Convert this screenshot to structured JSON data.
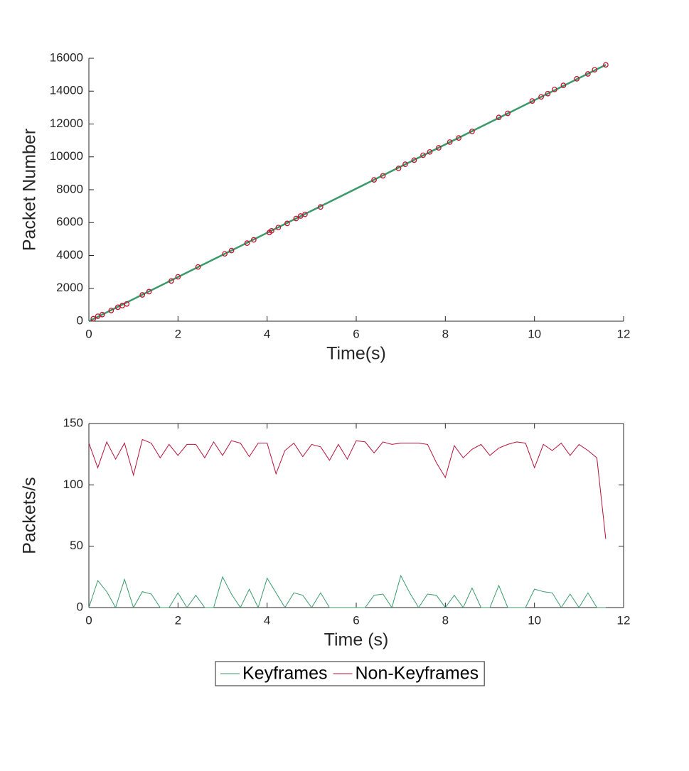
{
  "chart_data": [
    {
      "type": "line",
      "xlabel": "Time(s)",
      "ylabel": "Packet Number",
      "xlim": [
        0,
        12
      ],
      "xticks": [
        0,
        2,
        4,
        6,
        8,
        10,
        12
      ],
      "ylim": [
        0,
        16000
      ],
      "yticks": [
        0,
        2000,
        4000,
        6000,
        8000,
        10000,
        12000,
        14000,
        16000
      ],
      "box": false,
      "series": [
        {
          "color": "#3a9a6a",
          "marker": "none",
          "x": [
            0,
            11.6
          ],
          "values": [
            0,
            15600
          ]
        },
        {
          "color": "#c0142f",
          "marker": "circle",
          "line": false,
          "x": [
            0.1,
            0.2,
            0.3,
            0.5,
            0.65,
            0.75,
            0.85,
            1.2,
            1.35,
            1.85,
            2,
            2.45,
            3.05,
            3.2,
            3.55,
            3.7,
            4.05,
            4.1,
            4.25,
            4.45,
            4.65,
            4.75,
            4.85,
            5.2,
            6.4,
            6.6,
            6.95,
            7.1,
            7.3,
            7.5,
            7.65,
            7.85,
            8.1,
            8.3,
            8.6,
            9.2,
            9.4,
            9.95,
            10.15,
            10.3,
            10.45,
            10.65,
            10.95,
            11.2,
            11.35,
            11.6
          ],
          "values": [
            150,
            300,
            400,
            650,
            850,
            950,
            1050,
            1600,
            1800,
            2450,
            2700,
            3300,
            4100,
            4300,
            4750,
            4950,
            5400,
            5500,
            5700,
            5950,
            6250,
            6400,
            6500,
            6950,
            8600,
            8850,
            9300,
            9550,
            9800,
            10100,
            10300,
            10550,
            10900,
            11150,
            11550,
            12400,
            12650,
            13400,
            13650,
            13850,
            14100,
            14350,
            14750,
            15050,
            15300,
            15600
          ]
        }
      ]
    },
    {
      "type": "line",
      "xlabel": "Time (s)",
      "ylabel": "Packets/s",
      "xlim": [
        0,
        12
      ],
      "xticks": [
        0,
        2,
        4,
        6,
        8,
        10,
        12
      ],
      "ylim": [
        0,
        150
      ],
      "yticks": [
        0,
        50,
        100,
        150
      ],
      "box": true,
      "legend": "bottom",
      "x": [
        0,
        0.2,
        0.4,
        0.6,
        0.8,
        1,
        1.2,
        1.4,
        1.6,
        1.8,
        2,
        2.2,
        2.4,
        2.6,
        2.8,
        3,
        3.2,
        3.4,
        3.6,
        3.8,
        4,
        4.2,
        4.4,
        4.6,
        4.8,
        5,
        5.2,
        5.4,
        5.6,
        5.8,
        6,
        6.2,
        6.4,
        6.6,
        6.8,
        7,
        7.2,
        7.4,
        7.6,
        7.8,
        8,
        8.2,
        8.4,
        8.6,
        8.8,
        9,
        9.2,
        9.4,
        9.6,
        9.8,
        10,
        10.2,
        10.4,
        10.6,
        10.8,
        11,
        11.2,
        11.4,
        11.6
      ],
      "series": [
        {
          "name": "Keyframes",
          "color": "#3a9a6a",
          "values": [
            0,
            22,
            13,
            0,
            23,
            0,
            13,
            11,
            0,
            0,
            12,
            0,
            10,
            0,
            0,
            25,
            11,
            0,
            15,
            0,
            24,
            12,
            0,
            12,
            10,
            0,
            12,
            0,
            0,
            0,
            0,
            0,
            10,
            11,
            0,
            26,
            12,
            0,
            11,
            10,
            0,
            10,
            0,
            16,
            0,
            0,
            18,
            0,
            0,
            0,
            15,
            13,
            12,
            0,
            11,
            0,
            12,
            0,
            0
          ]
        },
        {
          "name": "Non-Keyframes",
          "color": "#b5123a",
          "values": [
            134,
            114,
            135,
            121,
            134,
            108,
            137,
            134,
            122,
            133,
            124,
            133,
            133,
            122,
            135,
            124,
            136,
            134,
            123,
            134,
            134,
            109,
            128,
            134,
            123,
            133,
            131,
            120,
            133,
            121,
            136,
            135,
            126,
            135,
            133,
            134,
            134,
            134,
            133,
            118,
            106,
            132,
            122,
            129,
            133,
            124,
            130,
            133,
            135,
            134,
            114,
            133,
            128,
            134,
            124,
            133,
            128,
            122,
            56
          ]
        }
      ]
    }
  ]
}
